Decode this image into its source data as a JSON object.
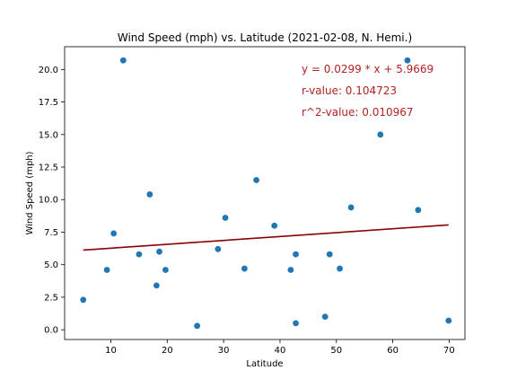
{
  "chart_data": {
    "type": "scatter",
    "title": "Wind Speed (mph) vs. Latitude (2021-02-08, N. Hemi.)",
    "xlabel": "Latitude",
    "ylabel": "Wind Speed (mph)",
    "xlim": [
      1.8,
      72.8
    ],
    "ylim": [
      -0.75,
      21.75
    ],
    "xticks": [
      10,
      20,
      30,
      40,
      50,
      60,
      70
    ],
    "yticks": [
      0.0,
      2.5,
      5.0,
      7.5,
      10.0,
      12.5,
      15.0,
      17.5,
      20.0
    ],
    "ytick_labels": [
      "0.0",
      "2.5",
      "5.0",
      "7.5",
      "10.0",
      "12.5",
      "15.0",
      "17.5",
      "20.0"
    ],
    "grid": false,
    "colors": {
      "points": "#1f77b4",
      "regression": "#8b0000",
      "annotation": "#b22222",
      "frame": "#000000"
    },
    "points": [
      {
        "x": 5.1,
        "y": 2.3
      },
      {
        "x": 9.3,
        "y": 4.6
      },
      {
        "x": 10.5,
        "y": 7.4
      },
      {
        "x": 12.2,
        "y": 20.7
      },
      {
        "x": 15.0,
        "y": 5.8
      },
      {
        "x": 16.9,
        "y": 10.4
      },
      {
        "x": 18.1,
        "y": 3.4
      },
      {
        "x": 18.6,
        "y": 6.0
      },
      {
        "x": 19.7,
        "y": 4.6
      },
      {
        "x": 25.3,
        "y": 0.3
      },
      {
        "x": 29.0,
        "y": 6.2
      },
      {
        "x": 30.3,
        "y": 8.6
      },
      {
        "x": 33.7,
        "y": 4.7
      },
      {
        "x": 35.8,
        "y": 11.5
      },
      {
        "x": 39.0,
        "y": 8.0
      },
      {
        "x": 41.9,
        "y": 4.6
      },
      {
        "x": 42.8,
        "y": 5.8
      },
      {
        "x": 42.8,
        "y": 0.5
      },
      {
        "x": 48.0,
        "y": 1.0
      },
      {
        "x": 48.8,
        "y": 5.8
      },
      {
        "x": 50.6,
        "y": 4.7
      },
      {
        "x": 52.6,
        "y": 9.4
      },
      {
        "x": 57.8,
        "y": 15.0
      },
      {
        "x": 62.6,
        "y": 20.7
      },
      {
        "x": 64.5,
        "y": 9.2
      },
      {
        "x": 69.9,
        "y": 0.7
      }
    ],
    "regression": {
      "slope": 0.0299,
      "intercept": 5.9669,
      "x_range": [
        5.1,
        69.9
      ]
    },
    "annotations": [
      "y = 0.0299 * x + 5.9669",
      "r-value: 0.104723",
      "r^2-value: 0.010967"
    ]
  }
}
